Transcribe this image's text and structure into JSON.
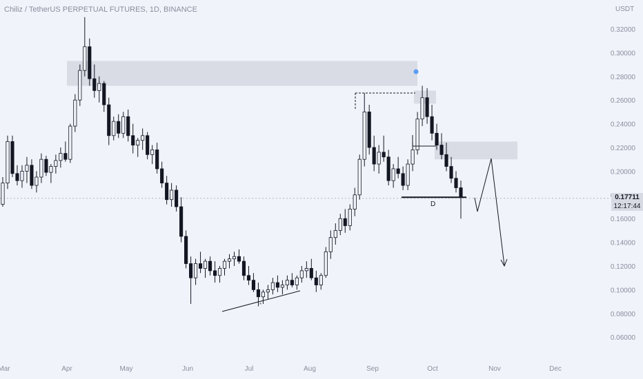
{
  "title": "Chiliz / TetherUS PERPETUAL FUTURES, 1D, BINANCE",
  "currency": "USDT",
  "current_price": "0.17711",
  "countdown": "12:17:44",
  "annotation_d": "D",
  "annotation_star": "*",
  "colors": {
    "background": "#f0f3fa",
    "candle": "#131722",
    "zone": "#d1d4dc",
    "marker": "#5b9cf6",
    "axis_text": "#8a8e9c"
  },
  "chart_data": {
    "type": "candlestick",
    "title": "Chiliz / TetherUS PERPETUAL FUTURES, 1D, BINANCE",
    "ylabel": "USDT",
    "ylim": [
      0.05,
      0.33
    ],
    "y_ticks": [
      "0.32000",
      "0.30000",
      "0.28000",
      "0.26000",
      "0.24000",
      "0.22000",
      "0.20000",
      "0.18000",
      "0.16000",
      "0.14000",
      "0.12000",
      "0.10000",
      "0.08000",
      "0.06000"
    ],
    "x_ticks": [
      "Mar",
      "Apr",
      "May",
      "Jun",
      "Jul",
      "Aug",
      "Sep",
      "Oct",
      "Nov",
      "Dec"
    ],
    "series": [
      {
        "values": [
          [
            0.172,
            0.195,
            0.17,
            0.19
          ],
          [
            0.19,
            0.23,
            0.185,
            0.225
          ],
          [
            0.225,
            0.23,
            0.195,
            0.198
          ],
          [
            0.198,
            0.205,
            0.188,
            0.192
          ],
          [
            0.192,
            0.205,
            0.186,
            0.2
          ],
          [
            0.2,
            0.212,
            0.19,
            0.205
          ],
          [
            0.205,
            0.21,
            0.185,
            0.188
          ],
          [
            0.188,
            0.2,
            0.182,
            0.195
          ],
          [
            0.195,
            0.215,
            0.19,
            0.21
          ],
          [
            0.21,
            0.213,
            0.196,
            0.199
          ],
          [
            0.199,
            0.206,
            0.19,
            0.204
          ],
          [
            0.204,
            0.214,
            0.198,
            0.209
          ],
          [
            0.209,
            0.22,
            0.203,
            0.215
          ],
          [
            0.215,
            0.225,
            0.208,
            0.21
          ],
          [
            0.21,
            0.24,
            0.207,
            0.238
          ],
          [
            0.238,
            0.265,
            0.233,
            0.26
          ],
          [
            0.26,
            0.29,
            0.255,
            0.285
          ],
          [
            0.285,
            0.33,
            0.28,
            0.305
          ],
          [
            0.305,
            0.312,
            0.272,
            0.278
          ],
          [
            0.278,
            0.29,
            0.262,
            0.268
          ],
          [
            0.268,
            0.28,
            0.258,
            0.274
          ],
          [
            0.274,
            0.276,
            0.25,
            0.256
          ],
          [
            0.256,
            0.262,
            0.222,
            0.23
          ],
          [
            0.23,
            0.246,
            0.226,
            0.242
          ],
          [
            0.242,
            0.248,
            0.228,
            0.232
          ],
          [
            0.232,
            0.25,
            0.228,
            0.246
          ],
          [
            0.246,
            0.252,
            0.225,
            0.23
          ],
          [
            0.23,
            0.24,
            0.215,
            0.222
          ],
          [
            0.222,
            0.228,
            0.212,
            0.226
          ],
          [
            0.226,
            0.236,
            0.218,
            0.23
          ],
          [
            0.23,
            0.233,
            0.21,
            0.214
          ],
          [
            0.214,
            0.222,
            0.206,
            0.218
          ],
          [
            0.218,
            0.224,
            0.198,
            0.202
          ],
          [
            0.202,
            0.208,
            0.186,
            0.19
          ],
          [
            0.19,
            0.196,
            0.172,
            0.176
          ],
          [
            0.176,
            0.19,
            0.17,
            0.184
          ],
          [
            0.184,
            0.188,
            0.166,
            0.17
          ],
          [
            0.17,
            0.178,
            0.14,
            0.145
          ],
          [
            0.145,
            0.15,
            0.118,
            0.122
          ],
          [
            0.122,
            0.128,
            0.088,
            0.11
          ],
          [
            0.11,
            0.126,
            0.104,
            0.122
          ],
          [
            0.122,
            0.132,
            0.114,
            0.118
          ],
          [
            0.118,
            0.126,
            0.11,
            0.124
          ],
          [
            0.124,
            0.128,
            0.112,
            0.116
          ],
          [
            0.116,
            0.124,
            0.106,
            0.112
          ],
          [
            0.112,
            0.12,
            0.106,
            0.118
          ],
          [
            0.118,
            0.126,
            0.112,
            0.124
          ],
          [
            0.124,
            0.13,
            0.118,
            0.126
          ],
          [
            0.126,
            0.132,
            0.12,
            0.128
          ],
          [
            0.128,
            0.134,
            0.122,
            0.124
          ],
          [
            0.124,
            0.128,
            0.108,
            0.112
          ],
          [
            0.112,
            0.12,
            0.104,
            0.108
          ],
          [
            0.108,
            0.114,
            0.098,
            0.1
          ],
          [
            0.1,
            0.106,
            0.086,
            0.094
          ],
          [
            0.094,
            0.1,
            0.088,
            0.098
          ],
          [
            0.098,
            0.104,
            0.092,
            0.1
          ],
          [
            0.1,
            0.11,
            0.096,
            0.106
          ],
          [
            0.106,
            0.112,
            0.098,
            0.102
          ],
          [
            0.102,
            0.108,
            0.096,
            0.104
          ],
          [
            0.104,
            0.112,
            0.1,
            0.108
          ],
          [
            0.108,
            0.114,
            0.102,
            0.104
          ],
          [
            0.104,
            0.112,
            0.1,
            0.11
          ],
          [
            0.11,
            0.12,
            0.106,
            0.116
          ],
          [
            0.116,
            0.124,
            0.11,
            0.118
          ],
          [
            0.118,
            0.126,
            0.108,
            0.11
          ],
          [
            0.11,
            0.116,
            0.098,
            0.104
          ],
          [
            0.104,
            0.114,
            0.1,
            0.112
          ],
          [
            0.112,
            0.136,
            0.11,
            0.132
          ],
          [
            0.132,
            0.15,
            0.126,
            0.144
          ],
          [
            0.144,
            0.156,
            0.138,
            0.15
          ],
          [
            0.15,
            0.164,
            0.146,
            0.16
          ],
          [
            0.16,
            0.168,
            0.148,
            0.154
          ],
          [
            0.154,
            0.172,
            0.15,
            0.168
          ],
          [
            0.168,
            0.186,
            0.162,
            0.18
          ],
          [
            0.18,
            0.214,
            0.176,
            0.21
          ],
          [
            0.21,
            0.266,
            0.204,
            0.25
          ],
          [
            0.25,
            0.256,
            0.214,
            0.22
          ],
          [
            0.22,
            0.23,
            0.2,
            0.206
          ],
          [
            0.206,
            0.222,
            0.198,
            0.216
          ],
          [
            0.216,
            0.23,
            0.208,
            0.212
          ],
          [
            0.212,
            0.218,
            0.188,
            0.192
          ],
          [
            0.192,
            0.206,
            0.186,
            0.202
          ],
          [
            0.202,
            0.212,
            0.194,
            0.198
          ],
          [
            0.198,
            0.204,
            0.184,
            0.188
          ],
          [
            0.188,
            0.21,
            0.184,
            0.206
          ],
          [
            0.206,
            0.224,
            0.2,
            0.218
          ],
          [
            0.218,
            0.25,
            0.214,
            0.244
          ],
          [
            0.244,
            0.272,
            0.238,
            0.262
          ],
          [
            0.262,
            0.27,
            0.24,
            0.246
          ],
          [
            0.246,
            0.256,
            0.226,
            0.232
          ],
          [
            0.232,
            0.24,
            0.218,
            0.222
          ],
          [
            0.222,
            0.232,
            0.21,
            0.214
          ],
          [
            0.214,
            0.224,
            0.2,
            0.204
          ],
          [
            0.204,
            0.212,
            0.19,
            0.194
          ],
          [
            0.194,
            0.2,
            0.182,
            0.186
          ],
          [
            0.186,
            0.192,
            0.16,
            0.178
          ]
        ]
      }
    ],
    "zones": [
      {
        "from": 0.272,
        "to": 0.293
      },
      {
        "from": 0.257,
        "to": 0.268
      },
      {
        "from": 0.21,
        "to": 0.225
      }
    ],
    "projection": [
      0.178,
      0.156,
      0.212,
      0.12
    ],
    "annotations": [
      {
        "label": "D",
        "value": 0.178
      },
      {
        "label": "*",
        "value": 0.082
      }
    ]
  }
}
